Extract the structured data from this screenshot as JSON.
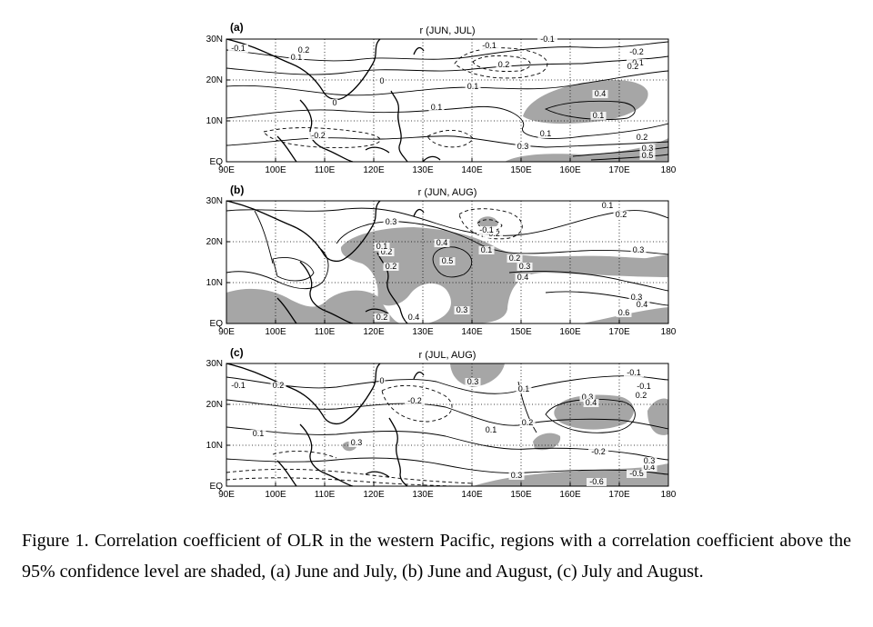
{
  "figure": {
    "x_ticks": [
      "90E",
      "100E",
      "110E",
      "120E",
      "130E",
      "140E",
      "150E",
      "160E",
      "170E",
      "180"
    ],
    "y_ticks": [
      "EQ",
      "10N",
      "20N",
      "30N"
    ],
    "panels": [
      {
        "label": "(a)",
        "title": "r (JUN, JUL)",
        "contour_labels": [
          "-0.1",
          "0.1",
          "0.2",
          "-0.2",
          "0",
          "-0.1",
          "0.2",
          "0.1",
          "-0.1",
          "-0.2",
          "-0.1",
          "0.2",
          "0",
          "0.4",
          "0.1",
          "0.3",
          "0.1",
          "0.2",
          "0.3",
          "0.5",
          "0.1"
        ],
        "colors": {
          "shade": "#a6a6a6"
        }
      },
      {
        "label": "(b)",
        "title": "r (JUN, AUG)",
        "contour_labels": [
          "0.3",
          "0.2",
          "0.4",
          "0.5",
          "0.1",
          "0.2",
          "-0.2",
          "-0.1",
          "0.2",
          "0.1",
          "0.3",
          "0.4",
          "0.3",
          "0.2",
          "0.4",
          "0.3",
          "0.6",
          "0.1",
          "0.2",
          "0.3",
          "0.4"
        ],
        "colors": {
          "shade": "#a6a6a6"
        }
      },
      {
        "label": "(c)",
        "title": "r (JUL, AUG)",
        "contour_labels": [
          "-0.1",
          "0.2",
          "0.1",
          "-0.2",
          "0.3",
          "0",
          "0.1",
          "0.2",
          "0.3",
          "-0.1",
          "-0.1",
          "0.3",
          "0.4",
          "-0.2",
          "0.2",
          "0.3",
          "-0.5",
          "-0.6",
          "0.4",
          "0.3",
          "0.1"
        ],
        "colors": {
          "shade": "#a6a6a6"
        }
      }
    ]
  },
  "caption": "Figure 1. Correlation coefficient of OLR in the western Pacific, regions with a correlation coefficient above the 95% confidence level are shaded, (a) June and July, (b) June and August, (c) July and August."
}
